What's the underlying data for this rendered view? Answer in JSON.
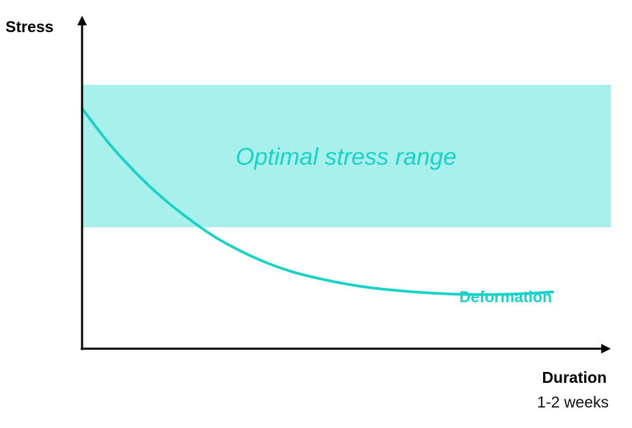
{
  "chart_data": {
    "type": "line",
    "title": "",
    "ylabel": "Stress",
    "xlabel": "Duration",
    "xlabel_sub": "1-2 weeks",
    "x_ticks_shown": false,
    "y_ticks_shown": false,
    "grid": false,
    "xlim": [
      0,
      100
    ],
    "ylim": [
      0,
      100
    ],
    "band": {
      "label": "Optimal stress range",
      "y_from": 46,
      "y_to": 100,
      "color": "#a8f0eb"
    },
    "series": [
      {
        "name": "Deformation",
        "color": "#1ad3c6",
        "x": [
          0,
          5,
          10,
          15,
          20,
          25,
          30,
          35,
          40,
          45,
          50,
          55,
          60,
          65,
          70,
          75,
          80,
          85,
          89
        ],
        "y": [
          91,
          78,
          67,
          57.5,
          49.5,
          42.5,
          37,
          32.5,
          29,
          26.5,
          24.5,
          23,
          22,
          21.2,
          20.7,
          20.5,
          20.6,
          21,
          21.5
        ]
      }
    ]
  },
  "colors": {
    "axis": "#000000",
    "band": "#a8f0eb",
    "accent": "#1ad3c6"
  }
}
